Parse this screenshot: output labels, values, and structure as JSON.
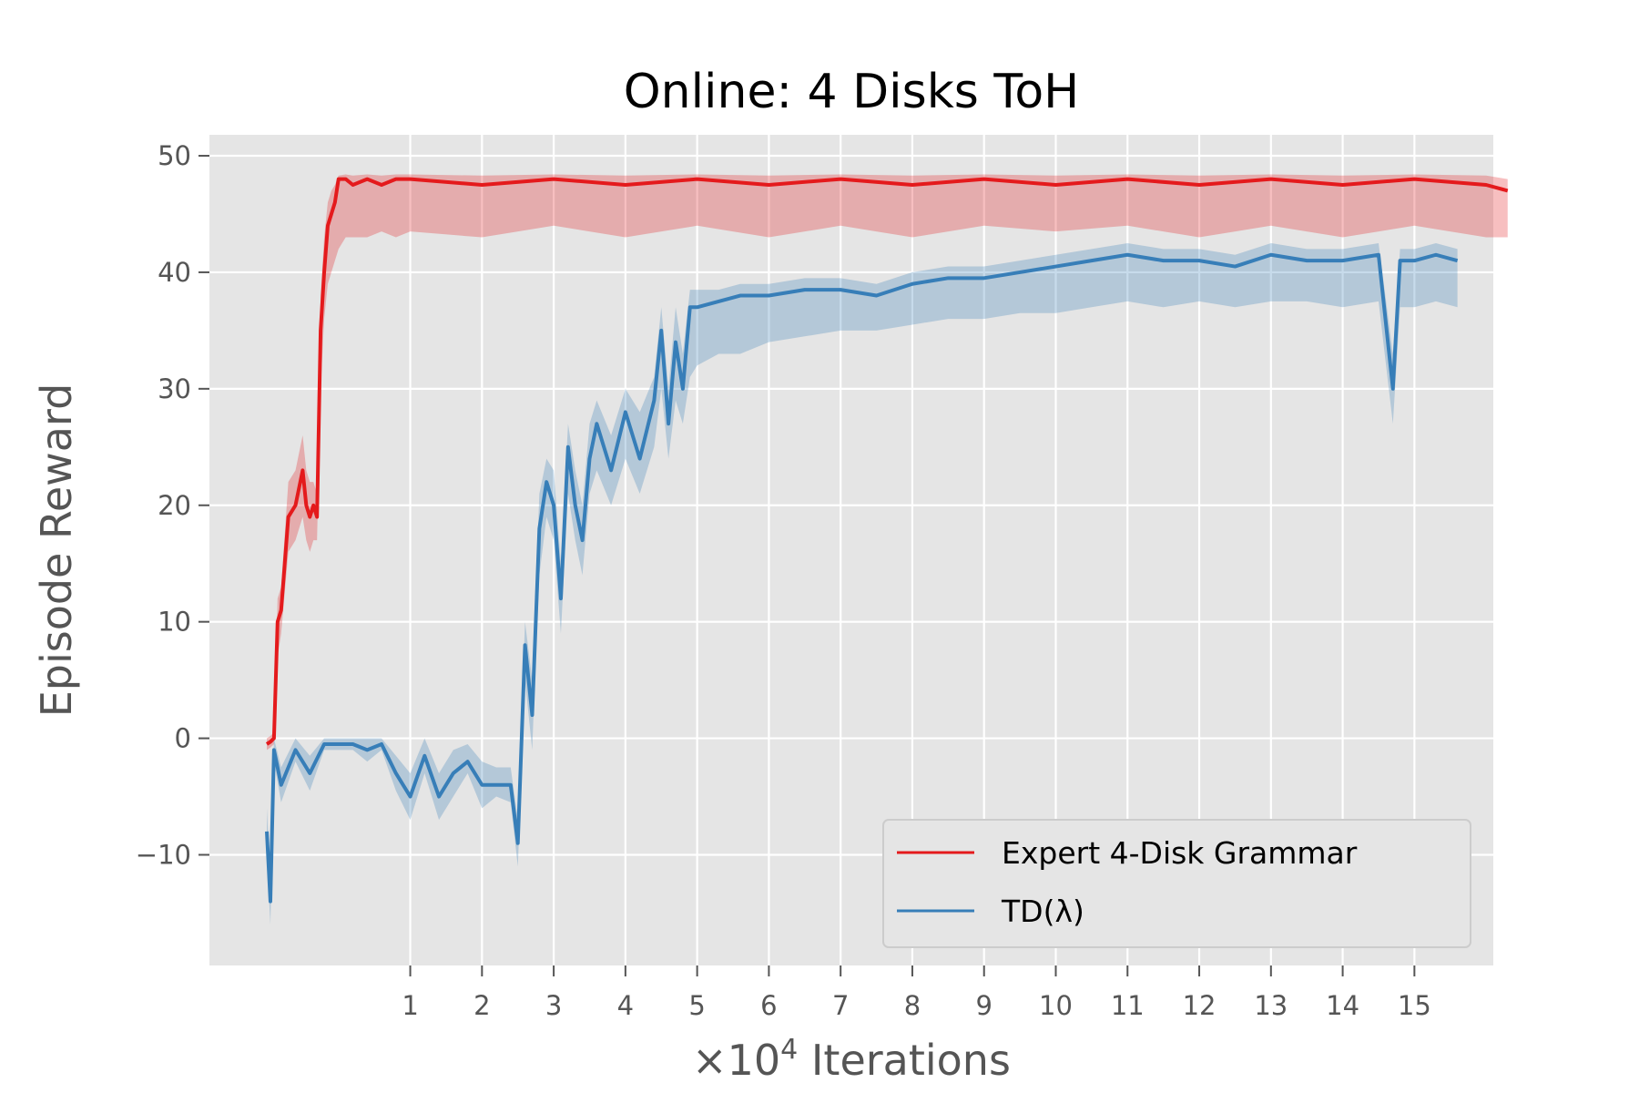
{
  "chart_data": {
    "type": "line",
    "title": "Online: 4 Disks ToH",
    "xlabel_prefix": "×10",
    "xlabel_exponent": "4",
    "xlabel_suffix": " Iterations",
    "ylabel": "Episode Reward",
    "xlim": [
      -1.8,
      16.1
    ],
    "ylim": [
      -19.5,
      51.8
    ],
    "x_ticks": [
      1,
      2,
      3,
      4,
      5,
      6,
      7,
      8,
      9,
      10,
      11,
      12,
      13,
      14,
      15
    ],
    "x_tick_labels": [
      "1",
      "2",
      "3",
      "4",
      "5",
      "6",
      "7",
      "8",
      "9",
      "10",
      "11",
      "12",
      "13",
      "14",
      "15"
    ],
    "y_ticks": [
      -10,
      0,
      10,
      20,
      30,
      40,
      50
    ],
    "y_tick_labels": [
      "−10",
      "0",
      "10",
      "20",
      "30",
      "40",
      "50"
    ],
    "grid": true,
    "legend_position": "lower-right",
    "series": [
      {
        "name": "Expert 4-Disk Grammar",
        "color": "#e41a1c",
        "x": [
          -1.0,
          -0.95,
          -0.9,
          -0.85,
          -0.8,
          -0.7,
          -0.6,
          -0.5,
          -0.45,
          -0.4,
          -0.35,
          -0.3,
          -0.25,
          -0.2,
          -0.15,
          -0.1,
          -0.05,
          0.0,
          0.1,
          0.2,
          0.4,
          0.6,
          0.8,
          1.0,
          2.0,
          3.0,
          4.0,
          5.0,
          6.0,
          7.0,
          8.0,
          9.0,
          10.0,
          11.0,
          12.0,
          13.0,
          14.0,
          15.0,
          16.0,
          16.3
        ],
        "y": [
          -0.5,
          -0.3,
          0.0,
          10.0,
          11.0,
          19.0,
          20.0,
          23.0,
          20.0,
          19.0,
          20.0,
          19.0,
          35.0,
          40.0,
          44.0,
          45.0,
          46.0,
          48.0,
          48.0,
          47.5,
          48.0,
          47.5,
          48.0,
          48.0,
          47.5,
          48.0,
          47.5,
          48.0,
          47.5,
          48.0,
          47.5,
          48.0,
          47.5,
          48.0,
          47.5,
          48.0,
          47.5,
          48.0,
          47.5,
          47.0
        ],
        "band_lower": [
          -1.0,
          -0.8,
          -0.5,
          7.0,
          9.0,
          16.0,
          17.0,
          19.0,
          17.0,
          16.0,
          17.0,
          17.0,
          30.0,
          36.0,
          39.0,
          40.0,
          41.0,
          42.0,
          43.0,
          43.0,
          43.0,
          43.5,
          43.0,
          43.5,
          43.0,
          44.0,
          43.0,
          44.0,
          43.0,
          44.0,
          43.0,
          44.0,
          43.5,
          44.0,
          43.0,
          44.0,
          43.0,
          44.0,
          43.0,
          43.0
        ],
        "band_upper": [
          0.0,
          0.2,
          0.5,
          12.0,
          13.0,
          22.0,
          23.0,
          26.0,
          23.0,
          22.0,
          22.0,
          21.0,
          38.0,
          43.0,
          46.0,
          47.0,
          47.5,
          48.3,
          48.4,
          48.3,
          48.4,
          48.3,
          48.4,
          48.4,
          48.3,
          48.4,
          48.3,
          48.4,
          48.3,
          48.4,
          48.3,
          48.4,
          48.3,
          48.4,
          48.3,
          48.4,
          48.3,
          48.4,
          48.3,
          48.0
        ]
      },
      {
        "name": "TD($\\lambda$)",
        "legend_label": "TD(λ)",
        "color": "#377eb8",
        "x": [
          -1.0,
          -0.95,
          -0.9,
          -0.8,
          -0.6,
          -0.4,
          -0.2,
          0.0,
          0.2,
          0.4,
          0.6,
          0.8,
          1.0,
          1.2,
          1.4,
          1.6,
          1.8,
          2.0,
          2.2,
          2.4,
          2.5,
          2.6,
          2.7,
          2.75,
          2.8,
          2.9,
          3.0,
          3.1,
          3.2,
          3.3,
          3.4,
          3.5,
          3.6,
          3.8,
          4.0,
          4.2,
          4.4,
          4.5,
          4.6,
          4.7,
          4.8,
          4.9,
          5.0,
          5.3,
          5.6,
          6.0,
          6.5,
          7.0,
          7.5,
          8.0,
          8.5,
          9.0,
          9.5,
          10.0,
          10.5,
          11.0,
          11.5,
          12.0,
          12.5,
          13.0,
          13.5,
          14.0,
          14.5,
          14.7,
          14.8,
          15.0,
          15.3,
          15.6
        ],
        "y": [
          -8.0,
          -14.0,
          -1.0,
          -4.0,
          -1.0,
          -3.0,
          -0.5,
          -0.5,
          -0.5,
          -1.0,
          -0.5,
          -3.0,
          -5.0,
          -1.5,
          -5.0,
          -3.0,
          -2.0,
          -4.0,
          -4.0,
          -4.0,
          -9.0,
          8.0,
          2.0,
          10.0,
          18.0,
          22.0,
          20.0,
          12.0,
          25.0,
          20.0,
          17.0,
          24.0,
          27.0,
          23.0,
          28.0,
          24.0,
          29.0,
          35.0,
          27.0,
          34.0,
          30.0,
          37.0,
          37.0,
          37.5,
          38.0,
          38.0,
          38.5,
          38.5,
          38.0,
          39.0,
          39.5,
          39.5,
          40.0,
          40.5,
          41.0,
          41.5,
          41.0,
          41.0,
          40.5,
          41.5,
          41.0,
          41.0,
          41.5,
          30.0,
          41.0,
          41.0,
          41.5,
          41.0
        ],
        "band_lower": [
          -10.0,
          -16.0,
          -2.0,
          -5.5,
          -2.0,
          -4.5,
          -1.0,
          -1.0,
          -1.0,
          -2.0,
          -1.0,
          -4.5,
          -7.0,
          -3.0,
          -7.0,
          -5.0,
          -3.0,
          -6.0,
          -5.0,
          -5.5,
          -11.0,
          5.0,
          -1.0,
          7.0,
          14.0,
          19.0,
          17.0,
          9.0,
          21.0,
          17.0,
          14.0,
          21.0,
          23.0,
          20.0,
          24.0,
          21.0,
          25.0,
          30.0,
          24.0,
          29.0,
          27.0,
          31.0,
          32.0,
          33.0,
          33.0,
          34.0,
          34.5,
          35.0,
          35.0,
          35.5,
          36.0,
          36.0,
          36.5,
          36.5,
          37.0,
          37.5,
          37.0,
          37.5,
          37.0,
          37.5,
          37.5,
          37.0,
          37.5,
          27.0,
          37.0,
          37.0,
          37.5,
          37.0
        ],
        "band_upper": [
          -6.0,
          -12.0,
          0.0,
          -2.5,
          0.0,
          -1.5,
          0.0,
          0.0,
          0.0,
          0.0,
          0.0,
          -1.5,
          -3.0,
          0.0,
          -3.0,
          -1.0,
          -0.5,
          -2.0,
          -2.5,
          -2.5,
          -7.0,
          10.0,
          5.0,
          13.0,
          21.0,
          24.0,
          23.0,
          15.0,
          27.0,
          23.0,
          20.0,
          27.0,
          29.0,
          26.0,
          30.0,
          28.0,
          31.0,
          37.0,
          30.0,
          37.0,
          33.0,
          38.5,
          38.5,
          38.5,
          39.0,
          39.0,
          39.5,
          39.5,
          39.0,
          40.0,
          40.5,
          40.5,
          41.0,
          41.5,
          42.0,
          42.5,
          42.0,
          42.0,
          41.5,
          42.5,
          42.0,
          42.0,
          42.5,
          33.0,
          42.0,
          42.0,
          42.5,
          42.0
        ]
      }
    ]
  }
}
